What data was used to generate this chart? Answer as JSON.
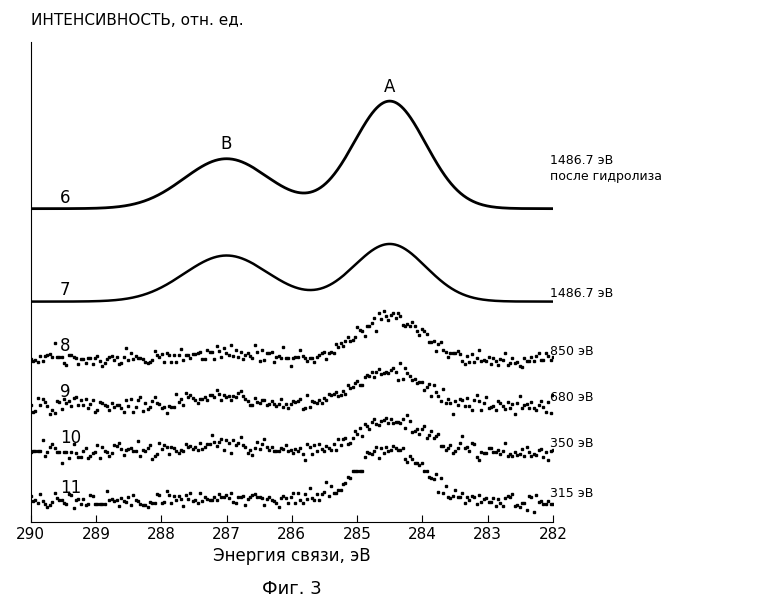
{
  "xlabel": "Энергия связи, эВ",
  "ylabel": "ИНТЕНСИВНОСТЬ, отн. ед.",
  "fig_label": "Фиг. 3",
  "xmin": 282,
  "xmax": 290,
  "curve_labels": [
    "6",
    "7",
    "8",
    "9",
    "10",
    "11"
  ],
  "right_labels": [
    "1486.7 эВ\nпосле гидролиза",
    "1486.7 эВ",
    "850 эВ",
    "680 эВ",
    "350 эВ",
    "315 эВ"
  ],
  "offsets": [
    3.8,
    2.6,
    1.85,
    1.25,
    0.65,
    0.0
  ],
  "background_color": "#ffffff",
  "line_color": "#000000",
  "xticks": [
    290,
    289,
    288,
    287,
    286,
    285,
    284,
    283,
    282
  ]
}
